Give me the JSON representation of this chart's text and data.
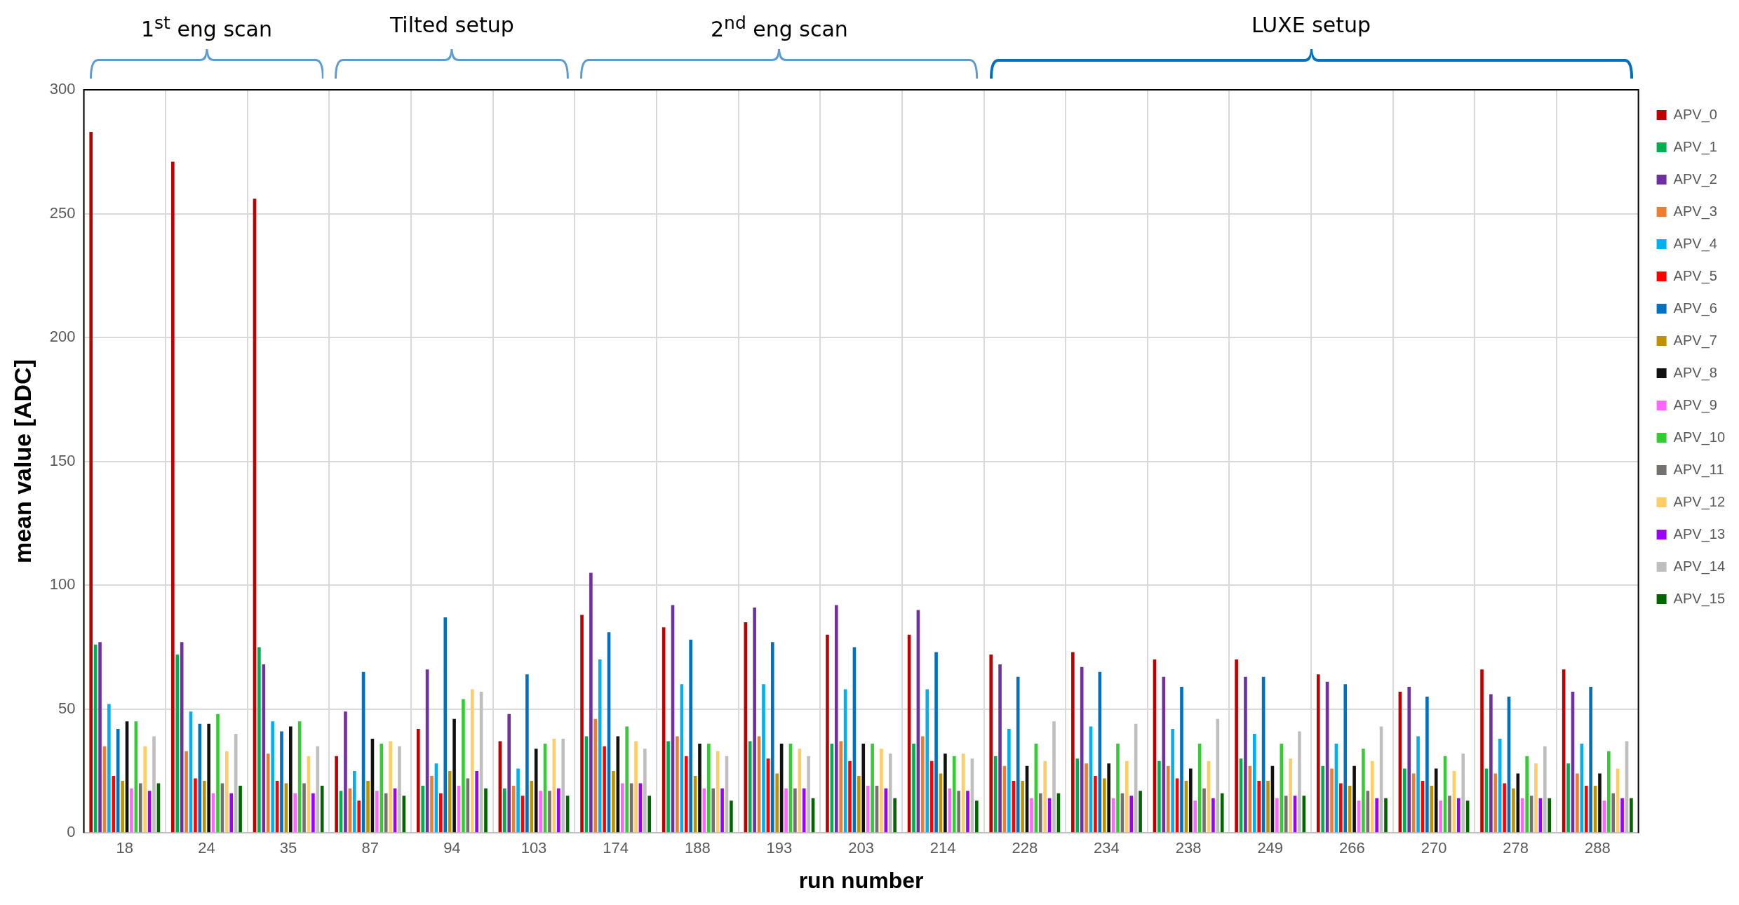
{
  "chart_data": {
    "type": "bar",
    "xlabel": "run number",
    "ylabel": "mean value [ADC]",
    "categories": [
      "18",
      "24",
      "35",
      "87",
      "94",
      "103",
      "174",
      "188",
      "193",
      "203",
      "214",
      "228",
      "234",
      "238",
      "249",
      "266",
      "270",
      "278",
      "288"
    ],
    "ylim": [
      0,
      300
    ],
    "yticks": [
      0,
      50,
      100,
      150,
      200,
      250,
      300
    ],
    "grid": true,
    "legend": "right",
    "annotations": [
      "1$^{st}$ eng scan",
      "Tilted setup",
      "2$^{nd}$ eng scan",
      "LUXE setup"
    ],
    "series": [
      {
        "name": "APV_0",
        "color": "#c00000",
        "values": [
          283,
          271,
          256,
          31,
          42,
          37,
          88,
          83,
          85,
          80,
          80,
          72,
          73,
          70,
          70,
          64,
          57,
          66,
          66
        ]
      },
      {
        "name": "APV_1",
        "color": "#00b050",
        "values": [
          76,
          72,
          75,
          17,
          19,
          18,
          39,
          37,
          37,
          36,
          36,
          31,
          30,
          29,
          30,
          27,
          26,
          26,
          28
        ]
      },
      {
        "name": "APV_2",
        "color": "#7030a0",
        "values": [
          77,
          77,
          68,
          49,
          66,
          48,
          105,
          92,
          91,
          92,
          90,
          68,
          67,
          63,
          63,
          61,
          59,
          56,
          57
        ]
      },
      {
        "name": "APV_3",
        "color": "#ed7d31",
        "values": [
          35,
          33,
          32,
          18,
          23,
          19,
          46,
          39,
          39,
          37,
          39,
          27,
          28,
          27,
          27,
          26,
          24,
          24,
          24
        ]
      },
      {
        "name": "APV_4",
        "color": "#00b0f0",
        "values": [
          52,
          49,
          45,
          25,
          28,
          26,
          70,
          60,
          60,
          58,
          58,
          42,
          43,
          42,
          40,
          36,
          39,
          38,
          36
        ]
      },
      {
        "name": "APV_5",
        "color": "#ff0000",
        "values": [
          23,
          22,
          21,
          13,
          16,
          15,
          35,
          31,
          30,
          29,
          29,
          21,
          23,
          22,
          21,
          20,
          21,
          20,
          19
        ]
      },
      {
        "name": "APV_6",
        "color": "#0070c0",
        "values": [
          42,
          44,
          41,
          65,
          87,
          64,
          81,
          78,
          77,
          75,
          73,
          63,
          65,
          59,
          63,
          60,
          55,
          55,
          59
        ]
      },
      {
        "name": "APV_7",
        "color": "#bf9000",
        "values": [
          21,
          21,
          20,
          21,
          25,
          21,
          25,
          23,
          24,
          23,
          24,
          21,
          22,
          21,
          21,
          19,
          19,
          18,
          19
        ]
      },
      {
        "name": "APV_8",
        "color": "#111111",
        "values": [
          45,
          44,
          43,
          38,
          46,
          34,
          39,
          36,
          36,
          36,
          32,
          27,
          28,
          26,
          27,
          27,
          26,
          24,
          24
        ]
      },
      {
        "name": "APV_9",
        "color": "#ff66ff",
        "values": [
          18,
          16,
          16,
          17,
          19,
          17,
          20,
          18,
          18,
          19,
          18,
          14,
          14,
          13,
          14,
          13,
          13,
          14,
          13
        ]
      },
      {
        "name": "APV_10",
        "color": "#33cc33",
        "values": [
          45,
          48,
          45,
          36,
          54,
          36,
          43,
          36,
          36,
          36,
          31,
          36,
          36,
          36,
          36,
          34,
          31,
          31,
          33
        ]
      },
      {
        "name": "APV_11",
        "color": "#767171",
        "values": [
          20,
          20,
          20,
          16,
          22,
          17,
          20,
          18,
          18,
          19,
          17,
          16,
          16,
          18,
          15,
          17,
          15,
          15,
          16
        ]
      },
      {
        "name": "APV_12",
        "color": "#ffcc66",
        "values": [
          35,
          33,
          31,
          37,
          58,
          38,
          37,
          33,
          34,
          34,
          32,
          29,
          29,
          29,
          30,
          29,
          25,
          28,
          26
        ]
      },
      {
        "name": "APV_13",
        "color": "#9900ff",
        "values": [
          17,
          16,
          16,
          18,
          25,
          18,
          20,
          18,
          18,
          18,
          17,
          14,
          15,
          14,
          15,
          14,
          14,
          14,
          14
        ]
      },
      {
        "name": "APV_14",
        "color": "#bfbfbf",
        "values": [
          39,
          40,
          35,
          35,
          57,
          38,
          34,
          31,
          31,
          32,
          30,
          45,
          44,
          46,
          41,
          43,
          32,
          35,
          37
        ]
      },
      {
        "name": "APV_15",
        "color": "#006600",
        "values": [
          20,
          19,
          19,
          15,
          18,
          15,
          15,
          13,
          14,
          14,
          13,
          16,
          17,
          16,
          15,
          14,
          13,
          14,
          14
        ]
      }
    ]
  }
}
